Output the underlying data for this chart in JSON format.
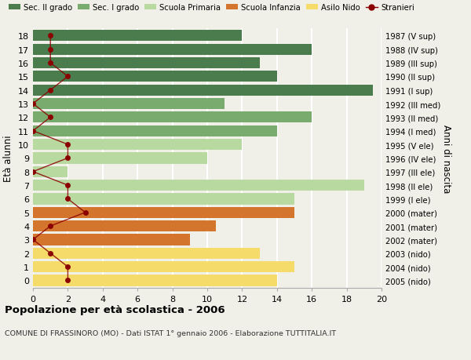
{
  "ages": [
    18,
    17,
    16,
    15,
    14,
    13,
    12,
    11,
    10,
    9,
    8,
    7,
    6,
    5,
    4,
    3,
    2,
    1,
    0
  ],
  "years": [
    "1987 (V sup)",
    "1988 (IV sup)",
    "1989 (III sup)",
    "1990 (II sup)",
    "1991 (I sup)",
    "1992 (III med)",
    "1993 (II med)",
    "1994 (I med)",
    "1995 (V ele)",
    "1996 (IV ele)",
    "1997 (III ele)",
    "1998 (II ele)",
    "1999 (I ele)",
    "2000 (mater)",
    "2001 (mater)",
    "2002 (mater)",
    "2003 (nido)",
    "2004 (nido)",
    "2005 (nido)"
  ],
  "bar_values": [
    12,
    16,
    13,
    14,
    19.5,
    11,
    16,
    14,
    12,
    10,
    2,
    19,
    15,
    15,
    10.5,
    9,
    13,
    15,
    14
  ],
  "bar_colors": [
    "#4a7c4e",
    "#4a7c4e",
    "#4a7c4e",
    "#4a7c4e",
    "#4a7c4e",
    "#7aab6e",
    "#7aab6e",
    "#7aab6e",
    "#b8d9a0",
    "#b8d9a0",
    "#b8d9a0",
    "#b8d9a0",
    "#b8d9a0",
    "#d4752e",
    "#d4752e",
    "#d4752e",
    "#f5dc6a",
    "#f5dc6a",
    "#f5dc6a"
  ],
  "stranieri_values": [
    1,
    1,
    1,
    2,
    1,
    0,
    1,
    0,
    2,
    2,
    0,
    2,
    2,
    3,
    1,
    0,
    1,
    2,
    2
  ],
  "title_bold": "Popolazione per età scolastica - 2006",
  "subtitle": "COMUNE DI FRASSINORO (MO) - Dati ISTAT 1° gennaio 2006 - Elaborazione TUTTITALIA.IT",
  "ylabel": "Età alunni",
  "ylabel_right": "Anni di nascita",
  "xlim": [
    0,
    20
  ],
  "xticks": [
    0,
    2,
    4,
    6,
    8,
    10,
    12,
    14,
    16,
    18,
    20
  ],
  "legend_labels": [
    "Sec. II grado",
    "Sec. I grado",
    "Scuola Primaria",
    "Scuola Infanzia",
    "Asilo Nido",
    "Stranieri"
  ],
  "legend_colors": [
    "#4a7c4e",
    "#7aab6e",
    "#b8d9a0",
    "#d4752e",
    "#f5dc6a",
    "#8b0000"
  ],
  "bg_color": "#f0f0e8",
  "grid_color": "#ffffff",
  "bar_height": 0.82,
  "stranieri_color": "#8b0000",
  "stranieri_linewidth": 1.0,
  "stranieri_markersize": 5
}
